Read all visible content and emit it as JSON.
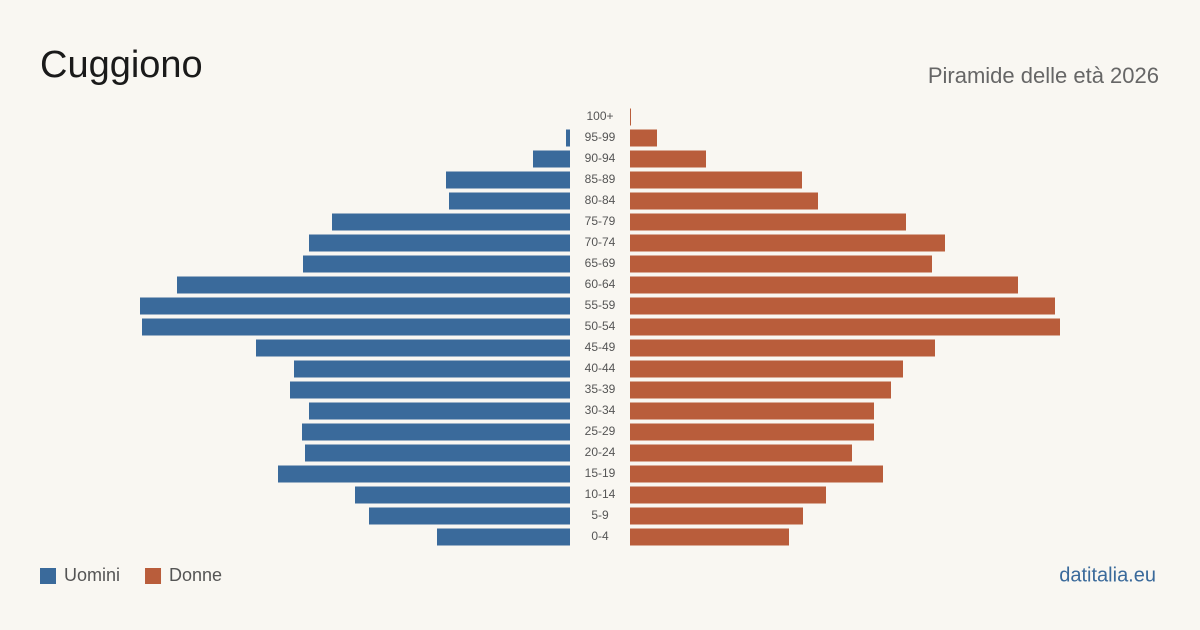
{
  "chart_data": {
    "type": "pyramid",
    "title": "Cuggiono",
    "subtitle": "Piramide delle età 2026",
    "source": "datitalia.eu",
    "categories": [
      "100+",
      "95-99",
      "90-94",
      "85-89",
      "80-84",
      "75-79",
      "70-74",
      "65-69",
      "60-64",
      "55-59",
      "50-54",
      "45-49",
      "40-44",
      "35-39",
      "30-34",
      "25-29",
      "20-24",
      "15-19",
      "10-14",
      "5-9",
      "0-4"
    ],
    "series": [
      {
        "name": "Uomini",
        "color": "#3a6a9b",
        "side": "left",
        "values": [
          0,
          4,
          37,
          124,
          121,
          238,
          261,
          267,
          393,
          430,
          428,
          314,
          276,
          280,
          261,
          268,
          265,
          292,
          215,
          201,
          133
        ]
      },
      {
        "name": "Donne",
        "color": "#b95d3b",
        "side": "right",
        "values": [
          1,
          27,
          76,
          172,
          188,
          276,
          315,
          302,
          388,
          425,
          430,
          305,
          273,
          261,
          244,
          244,
          222,
          253,
          196,
          173,
          159
        ]
      }
    ],
    "xlim": [
      0,
      430
    ],
    "legend": "bottom-left"
  }
}
